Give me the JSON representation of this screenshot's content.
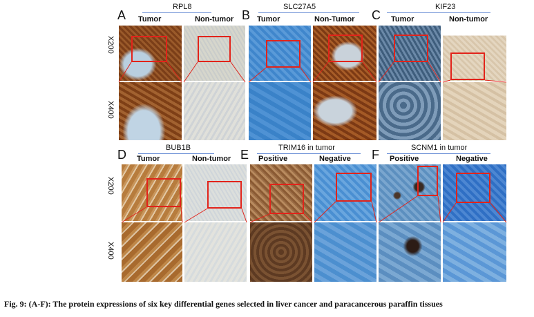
{
  "colors": {
    "tumor_brown": "#8a4a1e",
    "stain_blue": "#4f8fd0",
    "light_tissue": "#dcdcd2",
    "box_red": "#e2231a",
    "underline_blue": "#6b8fd6"
  },
  "magnifications": {
    "x200": "X200",
    "x400": "X400"
  },
  "panels": {
    "A": {
      "letter": "A",
      "gene": "RPL8",
      "left": "Tumor",
      "right": "Non-tumor"
    },
    "B": {
      "letter": "B",
      "gene": "SLC27A5",
      "left": "Tumor",
      "right": "Non-Tumor"
    },
    "C": {
      "letter": "C",
      "gene": "KIF23",
      "left": "Tumor",
      "right": "Non-tumor"
    },
    "D": {
      "letter": "D",
      "gene": "BUB1B",
      "left": "Tumor",
      "right": "Non-tumor"
    },
    "E": {
      "letter": "E",
      "gene": "TRIM16 in tumor",
      "left": "Positive",
      "right": "Negative"
    },
    "F": {
      "letter": "F",
      "gene": "SCNM1 in tumor",
      "left": "Positive",
      "right": "Negative"
    }
  },
  "caption": "Fig. 9: (A-F): The protein expressions of six key differential genes selected in liver cancer and paracancerous paraffin tissues"
}
